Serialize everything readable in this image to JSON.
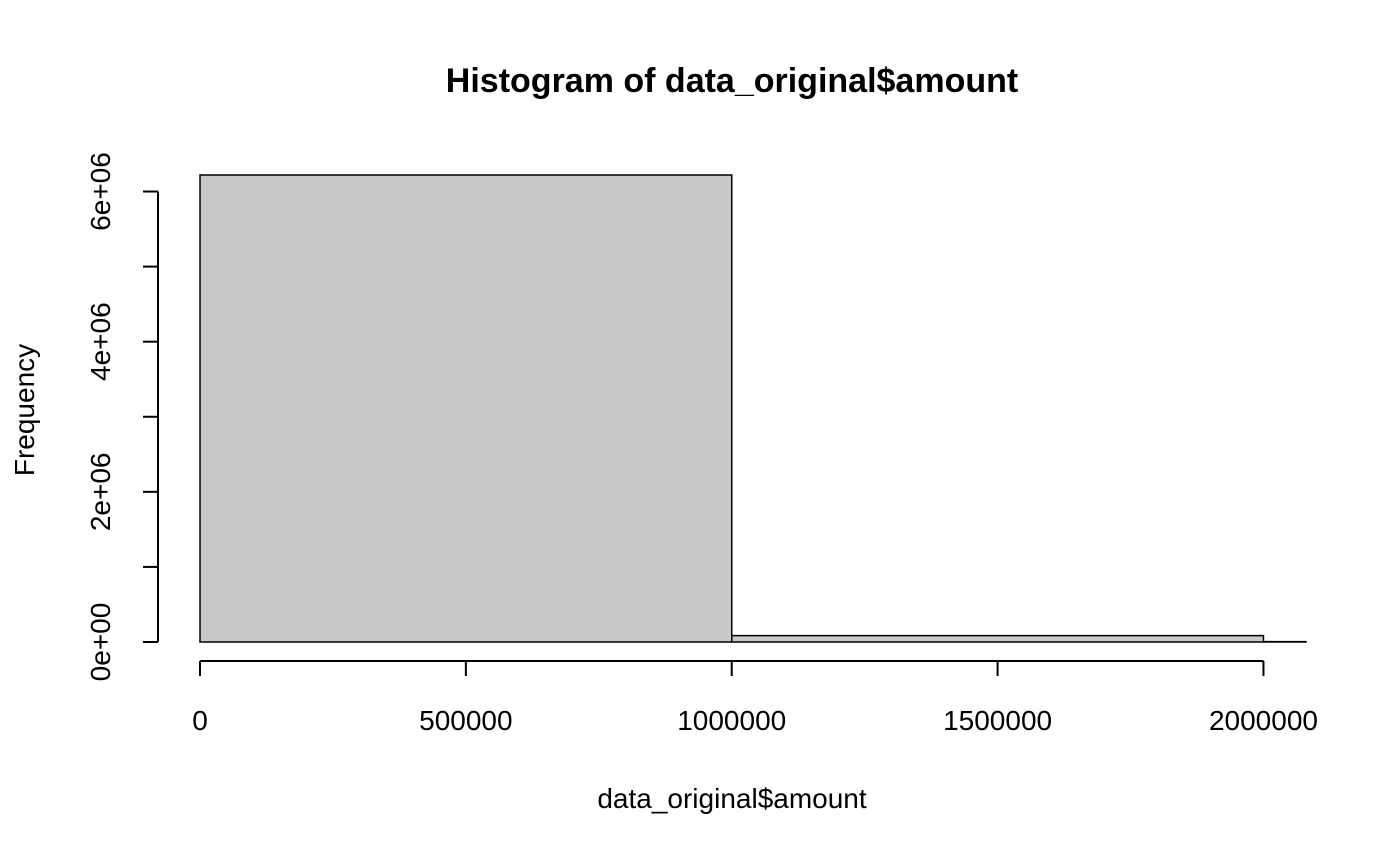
{
  "chart_data": {
    "type": "bar",
    "subtype": "histogram",
    "title": "Histogram of data_original$amount",
    "xlabel": "data_original$amount",
    "ylabel": "Frequency",
    "bins": [
      {
        "start": 0,
        "end": 1000000,
        "count": 6220000
      },
      {
        "start": 1000000,
        "end": 2000000,
        "count": 85000
      },
      {
        "start": 2000000,
        "end": 2080000,
        "count": 5000
      }
    ],
    "x_ticks": [
      0,
      500000,
      1000000,
      1500000,
      2000000
    ],
    "x_tick_labels": [
      "0",
      "500000",
      "1000000",
      "1500000",
      "2000000"
    ],
    "y_ticks": [
      0,
      1000000,
      2000000,
      3000000,
      4000000,
      5000000,
      6000000
    ],
    "y_tick_labels": [
      "0e+00",
      "",
      "2e+06",
      "",
      "4e+06",
      "",
      "6e+06"
    ],
    "xlim": [
      0,
      2080000
    ],
    "ylim": [
      0,
      6220000
    ],
    "grid": false,
    "legend": "none",
    "colors": {
      "bar_fill": "#c9c9c9",
      "bar_stroke": "#000000",
      "axis": "#000000",
      "background": "#ffffff"
    }
  }
}
